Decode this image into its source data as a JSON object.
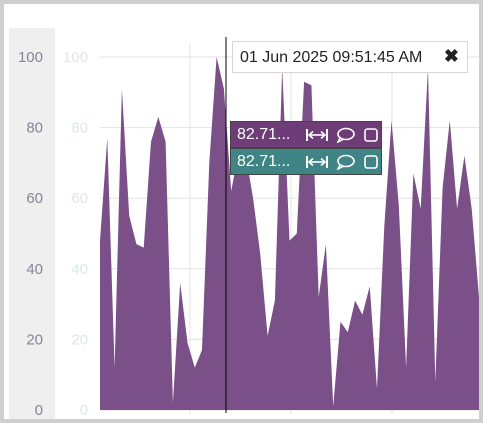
{
  "chart_data": {
    "type": "area",
    "title": "",
    "xlabel": "",
    "ylabel": "",
    "ylim": [
      0,
      100
    ],
    "yticks": [
      "0",
      "20",
      "40",
      "60",
      "80",
      "100"
    ],
    "grid": true,
    "series": [
      {
        "color": "#7b4f87",
        "values": [
          48,
          77,
          12,
          91,
          55,
          47,
          46,
          76,
          83,
          76,
          2,
          36,
          19,
          12,
          17,
          70,
          100,
          91,
          62,
          73,
          72,
          60,
          44,
          21,
          31,
          97,
          48,
          50,
          93,
          92,
          32,
          47,
          1,
          25,
          22,
          31,
          27,
          35,
          6,
          52,
          82,
          58,
          12,
          67,
          57,
          97,
          8,
          63,
          82,
          57,
          72,
          57,
          32
        ]
      }
    ]
  },
  "tooltip": {
    "datetime": "01 Jun 2025 09:51:45 AM",
    "close_icon": "close-icon"
  },
  "series_labels": [
    {
      "value": "82.71...",
      "color": "#6e3d78"
    },
    {
      "value": "82.71...",
      "color": "#3f8585"
    }
  ],
  "colors": {
    "area_fill": "#7b4f87",
    "axis_band": "#efefef",
    "inner_tick_text": "#dce7ee",
    "outer_tick_text": "#8a8396",
    "crosshair": "#000000"
  }
}
